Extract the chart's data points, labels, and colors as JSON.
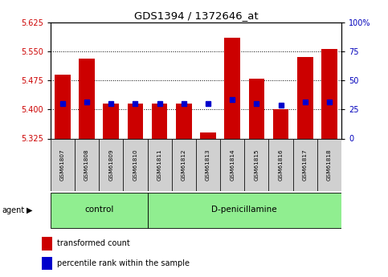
{
  "title": "GDS1394 / 1372646_at",
  "samples": [
    "GSM61807",
    "GSM61808",
    "GSM61809",
    "GSM61810",
    "GSM61811",
    "GSM61812",
    "GSM61813",
    "GSM61814",
    "GSM61815",
    "GSM61816",
    "GSM61817",
    "GSM61818"
  ],
  "red_values": [
    5.49,
    5.53,
    5.415,
    5.415,
    5.415,
    5.415,
    5.34,
    5.585,
    5.48,
    5.4,
    5.535,
    5.555
  ],
  "blue_values": [
    5.415,
    5.42,
    5.415,
    5.415,
    5.415,
    5.415,
    5.415,
    5.425,
    5.415,
    5.41,
    5.42,
    5.42
  ],
  "ylim_left": [
    5.325,
    5.625
  ],
  "ylim_right": [
    0,
    100
  ],
  "yticks_left": [
    5.325,
    5.4,
    5.475,
    5.55,
    5.625
  ],
  "yticks_right": [
    0,
    25,
    50,
    75,
    100
  ],
  "bar_bottom": 5.325,
  "bar_width": 0.65,
  "control_count": 4,
  "dpenicillamine_count": 8,
  "red_color": "#CC0000",
  "blue_color": "#0000CC",
  "left_label_color": "#CC0000",
  "right_label_color": "#0000BB",
  "legend_red": "transformed count",
  "legend_blue": "percentile rank within the sample",
  "plot_bg": "#FFFFFF",
  "gridlines": [
    5.4,
    5.475,
    5.55
  ]
}
